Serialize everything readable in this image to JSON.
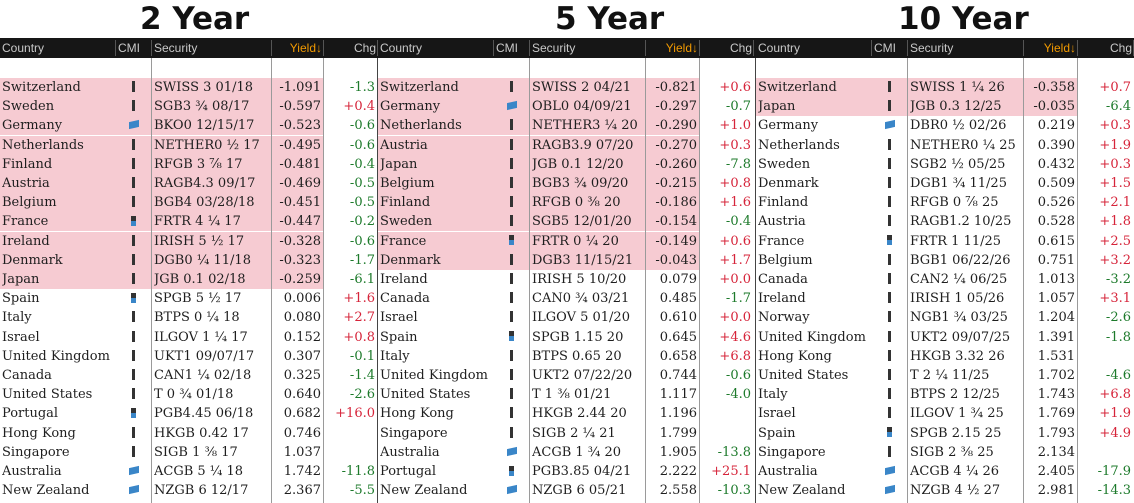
{
  "colors": {
    "highlight": "#f6cbd2",
    "header_bg": "#161616",
    "yield_header": "#f29a00",
    "positive": "#d6243a",
    "negative": "#1d7a2b"
  },
  "columns": {
    "country": "Country",
    "cmi": "CMI",
    "security": "Security",
    "yield": "Yield↓",
    "chg": "Chg"
  },
  "panels": [
    {
      "title": "2 Year",
      "rows": [
        {
          "country": "Switzerland",
          "icon": "bar-icon",
          "security": "SWISS 3 01/18",
          "yield": "-1.091",
          "chg": "-1.3",
          "hl": true
        },
        {
          "country": "Sweden",
          "icon": "bar-icon",
          "security": "SGB3 ¾ 08/17",
          "yield": "-0.597",
          "chg": "+0.4",
          "hl": true
        },
        {
          "country": "Germany",
          "icon": "flag-icon",
          "security": "BKO0 12/15/17",
          "yield": "-0.523",
          "chg": "-0.6",
          "hl": true
        },
        {
          "country": "Netherlands",
          "icon": "bar-icon",
          "security": "NETHER0 ½ 17",
          "yield": "-0.495",
          "chg": "-0.6",
          "hl": true
        },
        {
          "country": "Finland",
          "icon": "bar-icon",
          "security": "RFGB 3 ⅞ 17",
          "yield": "-0.481",
          "chg": "-0.4",
          "hl": true
        },
        {
          "country": "Austria",
          "icon": "bar-icon",
          "security": "RAGB4.3 09/17",
          "yield": "-0.469",
          "chg": "-0.5",
          "hl": true
        },
        {
          "country": "Belgium",
          "icon": "bar-icon",
          "security": "BGB4 03/28/18",
          "yield": "-0.451",
          "chg": "-0.5",
          "hl": true
        },
        {
          "country": "France",
          "icon": "half-icon",
          "security": "FRTR 4 ¼ 17",
          "yield": "-0.447",
          "chg": "-0.2",
          "hl": true
        },
        {
          "country": "Ireland",
          "icon": "bar-icon",
          "security": "IRISH 5 ½ 17",
          "yield": "-0.328",
          "chg": "-0.6",
          "hl": true
        },
        {
          "country": "Denmark",
          "icon": "bar-icon",
          "security": "DGB0 ¼ 11/18",
          "yield": "-0.323",
          "chg": "-1.7",
          "hl": true
        },
        {
          "country": "Japan",
          "icon": "bar-icon",
          "security": "JGB 0.1 02/18",
          "yield": "-0.259",
          "chg": "-6.1",
          "hl": true
        },
        {
          "country": "Spain",
          "icon": "half-icon",
          "security": "SPGB 5 ½ 17",
          "yield": "0.006",
          "chg": "+1.6",
          "hl": false
        },
        {
          "country": "Italy",
          "icon": "bar-icon",
          "security": "BTPS 0 ¼ 18",
          "yield": "0.080",
          "chg": "+2.7",
          "hl": false
        },
        {
          "country": "Israel",
          "icon": "bar-icon",
          "security": "ILGOV 1 ¼ 17",
          "yield": "0.152",
          "chg": "+0.8",
          "hl": false
        },
        {
          "country": "United Kingdom",
          "icon": "bar-icon",
          "security": "UKT1 09/07/17",
          "yield": "0.307",
          "chg": "-0.1",
          "hl": false
        },
        {
          "country": "Canada",
          "icon": "bar-icon",
          "security": "CAN1 ¼ 02/18",
          "yield": "0.325",
          "chg": "-1.4",
          "hl": false
        },
        {
          "country": "United States",
          "icon": "bar-icon",
          "security": "T 0 ¾ 01/18",
          "yield": "0.640",
          "chg": "-2.6",
          "hl": false
        },
        {
          "country": "Portugal",
          "icon": "half-icon",
          "security": "PGB4.45 06/18",
          "yield": "0.682",
          "chg": "+16.0",
          "hl": false
        },
        {
          "country": "Hong Kong",
          "icon": "bar-icon",
          "security": "HKGB 0.42 17",
          "yield": "0.746",
          "chg": "",
          "hl": false
        },
        {
          "country": "Singapore",
          "icon": "bar-icon",
          "security": "SIGB 1 ⅜ 17",
          "yield": "1.037",
          "chg": "",
          "hl": false
        },
        {
          "country": "Australia",
          "icon": "flag-icon",
          "security": "ACGB 5 ¼ 18",
          "yield": "1.742",
          "chg": "-11.8",
          "hl": false
        },
        {
          "country": "New Zealand",
          "icon": "flag-icon",
          "security": "NZGB 6 12/17",
          "yield": "2.367",
          "chg": "-5.5",
          "hl": false
        }
      ]
    },
    {
      "title": "5 Year",
      "rows": [
        {
          "country": "Switzerland",
          "icon": "bar-icon",
          "security": "SWISS 2 04/21",
          "yield": "-0.821",
          "chg": "+0.6",
          "hl": true
        },
        {
          "country": "Germany",
          "icon": "flag-icon",
          "security": "OBL0 04/09/21",
          "yield": "-0.297",
          "chg": "-0.7",
          "hl": true
        },
        {
          "country": "Netherlands",
          "icon": "bar-icon",
          "security": "NETHER3 ¼ 20",
          "yield": "-0.290",
          "chg": "+1.0",
          "hl": true
        },
        {
          "country": "Austria",
          "icon": "bar-icon",
          "security": "RAGB3.9 07/20",
          "yield": "-0.270",
          "chg": "+0.3",
          "hl": true
        },
        {
          "country": "Japan",
          "icon": "bar-icon",
          "security": "JGB 0.1 12/20",
          "yield": "-0.260",
          "chg": "-7.8",
          "hl": true
        },
        {
          "country": "Belgium",
          "icon": "bar-icon",
          "security": "BGB3 ¾ 09/20",
          "yield": "-0.215",
          "chg": "+0.8",
          "hl": true
        },
        {
          "country": "Finland",
          "icon": "bar-icon",
          "security": "RFGB 0 ⅜ 20",
          "yield": "-0.186",
          "chg": "+1.6",
          "hl": true
        },
        {
          "country": "Sweden",
          "icon": "bar-icon",
          "security": "SGB5 12/01/20",
          "yield": "-0.154",
          "chg": "-0.4",
          "hl": true
        },
        {
          "country": "France",
          "icon": "half-icon",
          "security": "FRTR 0 ¼ 20",
          "yield": "-0.149",
          "chg": "+0.6",
          "hl": true
        },
        {
          "country": "Denmark",
          "icon": "bar-icon",
          "security": "DGB3 11/15/21",
          "yield": "-0.043",
          "chg": "+1.7",
          "hl": true
        },
        {
          "country": "Ireland",
          "icon": "bar-icon",
          "security": "IRISH 5 10/20",
          "yield": "0.079",
          "chg": "+0.0",
          "hl": false
        },
        {
          "country": "Canada",
          "icon": "bar-icon",
          "security": "CAN0 ¾ 03/21",
          "yield": "0.485",
          "chg": "-1.7",
          "hl": false
        },
        {
          "country": "Israel",
          "icon": "bar-icon",
          "security": "ILGOV 5 01/20",
          "yield": "0.610",
          "chg": "+0.0",
          "hl": false
        },
        {
          "country": "Spain",
          "icon": "half-icon",
          "security": "SPGB 1.15 20",
          "yield": "0.645",
          "chg": "+4.6",
          "hl": false
        },
        {
          "country": "Italy",
          "icon": "bar-icon",
          "security": "BTPS 0.65 20",
          "yield": "0.658",
          "chg": "+6.8",
          "hl": false
        },
        {
          "country": "United Kingdom",
          "icon": "bar-icon",
          "security": "UKT2 07/22/20",
          "yield": "0.744",
          "chg": "-0.6",
          "hl": false
        },
        {
          "country": "United States",
          "icon": "bar-icon",
          "security": "T 1 ⅜ 01/21",
          "yield": "1.117",
          "chg": "-4.0",
          "hl": false
        },
        {
          "country": "Hong Kong",
          "icon": "bar-icon",
          "security": "HKGB 2.44 20",
          "yield": "1.196",
          "chg": "",
          "hl": false
        },
        {
          "country": "Singapore",
          "icon": "bar-icon",
          "security": "SIGB 2 ¼ 21",
          "yield": "1.799",
          "chg": "",
          "hl": false
        },
        {
          "country": "Australia",
          "icon": "flag-icon",
          "security": "ACGB 1 ¾ 20",
          "yield": "1.905",
          "chg": "-13.8",
          "hl": false
        },
        {
          "country": "Portugal",
          "icon": "half-icon",
          "security": "PGB3.85 04/21",
          "yield": "2.222",
          "chg": "+25.1",
          "hl": false
        },
        {
          "country": "New Zealand",
          "icon": "flag-icon",
          "security": "NZGB 6 05/21",
          "yield": "2.558",
          "chg": "-10.3",
          "hl": false
        }
      ]
    },
    {
      "title": "10 Year",
      "rows": [
        {
          "country": "Switzerland",
          "icon": "bar-icon",
          "security": "SWISS 1 ¼ 26",
          "yield": "-0.358",
          "chg": "+0.7",
          "hl": true
        },
        {
          "country": "Japan",
          "icon": "bar-icon",
          "security": "JGB 0.3 12/25",
          "yield": "-0.035",
          "chg": "-6.4",
          "hl": true
        },
        {
          "country": "Germany",
          "icon": "flag-icon",
          "security": "DBR0 ½ 02/26",
          "yield": "0.219",
          "chg": "+0.3",
          "hl": false
        },
        {
          "country": "Netherlands",
          "icon": "bar-icon",
          "security": "NETHER0 ¼ 25",
          "yield": "0.390",
          "chg": "+1.9",
          "hl": false
        },
        {
          "country": "Sweden",
          "icon": "bar-icon",
          "security": "SGB2 ½ 05/25",
          "yield": "0.432",
          "chg": "+0.3",
          "hl": false
        },
        {
          "country": "Denmark",
          "icon": "bar-icon",
          "security": "DGB1 ¾ 11/25",
          "yield": "0.509",
          "chg": "+1.5",
          "hl": false
        },
        {
          "country": "Finland",
          "icon": "bar-icon",
          "security": "RFGB 0 ⅞ 25",
          "yield": "0.526",
          "chg": "+2.1",
          "hl": false
        },
        {
          "country": "Austria",
          "icon": "bar-icon",
          "security": "RAGB1.2 10/25",
          "yield": "0.528",
          "chg": "+1.8",
          "hl": false
        },
        {
          "country": "France",
          "icon": "half-icon",
          "security": "FRTR 1 11/25",
          "yield": "0.615",
          "chg": "+2.5",
          "hl": false
        },
        {
          "country": "Belgium",
          "icon": "bar-icon",
          "security": "BGB1 06/22/26",
          "yield": "0.751",
          "chg": "+3.2",
          "hl": false
        },
        {
          "country": "Canada",
          "icon": "bar-icon",
          "security": "CAN2 ¼ 06/25",
          "yield": "1.013",
          "chg": "-3.2",
          "hl": false
        },
        {
          "country": "Ireland",
          "icon": "bar-icon",
          "security": "IRISH 1 05/26",
          "yield": "1.057",
          "chg": "+3.1",
          "hl": false
        },
        {
          "country": "Norway",
          "icon": "bar-icon",
          "security": "NGB1 ¾ 03/25",
          "yield": "1.204",
          "chg": "-2.6",
          "hl": false
        },
        {
          "country": "United Kingdom",
          "icon": "bar-icon",
          "security": "UKT2 09/07/25",
          "yield": "1.391",
          "chg": "-1.8",
          "hl": false
        },
        {
          "country": "Hong Kong",
          "icon": "bar-icon",
          "security": "HKGB 3.32 26",
          "yield": "1.531",
          "chg": "",
          "hl": false
        },
        {
          "country": "United States",
          "icon": "bar-icon",
          "security": "T 2 ¼ 11/25",
          "yield": "1.702",
          "chg": "-4.6",
          "hl": false
        },
        {
          "country": "Italy",
          "icon": "bar-icon",
          "security": "BTPS 2 12/25",
          "yield": "1.743",
          "chg": "+6.8",
          "hl": false
        },
        {
          "country": "Israel",
          "icon": "bar-icon",
          "security": "ILGOV 1 ¾ 25",
          "yield": "1.769",
          "chg": "+1.9",
          "hl": false
        },
        {
          "country": "Spain",
          "icon": "half-icon",
          "security": "SPGB 2.15 25",
          "yield": "1.793",
          "chg": "+4.9",
          "hl": false
        },
        {
          "country": "Singapore",
          "icon": "bar-icon",
          "security": "SIGB 2 ⅜ 25",
          "yield": "2.134",
          "chg": "",
          "hl": false
        },
        {
          "country": "Australia",
          "icon": "flag-icon",
          "security": "ACGB 4 ¼ 26",
          "yield": "2.405",
          "chg": "-17.9",
          "hl": false
        },
        {
          "country": "New Zealand",
          "icon": "flag-icon",
          "security": "NZGB 4 ½ 27",
          "yield": "2.981",
          "chg": "-14.3",
          "hl": false
        }
      ]
    }
  ]
}
